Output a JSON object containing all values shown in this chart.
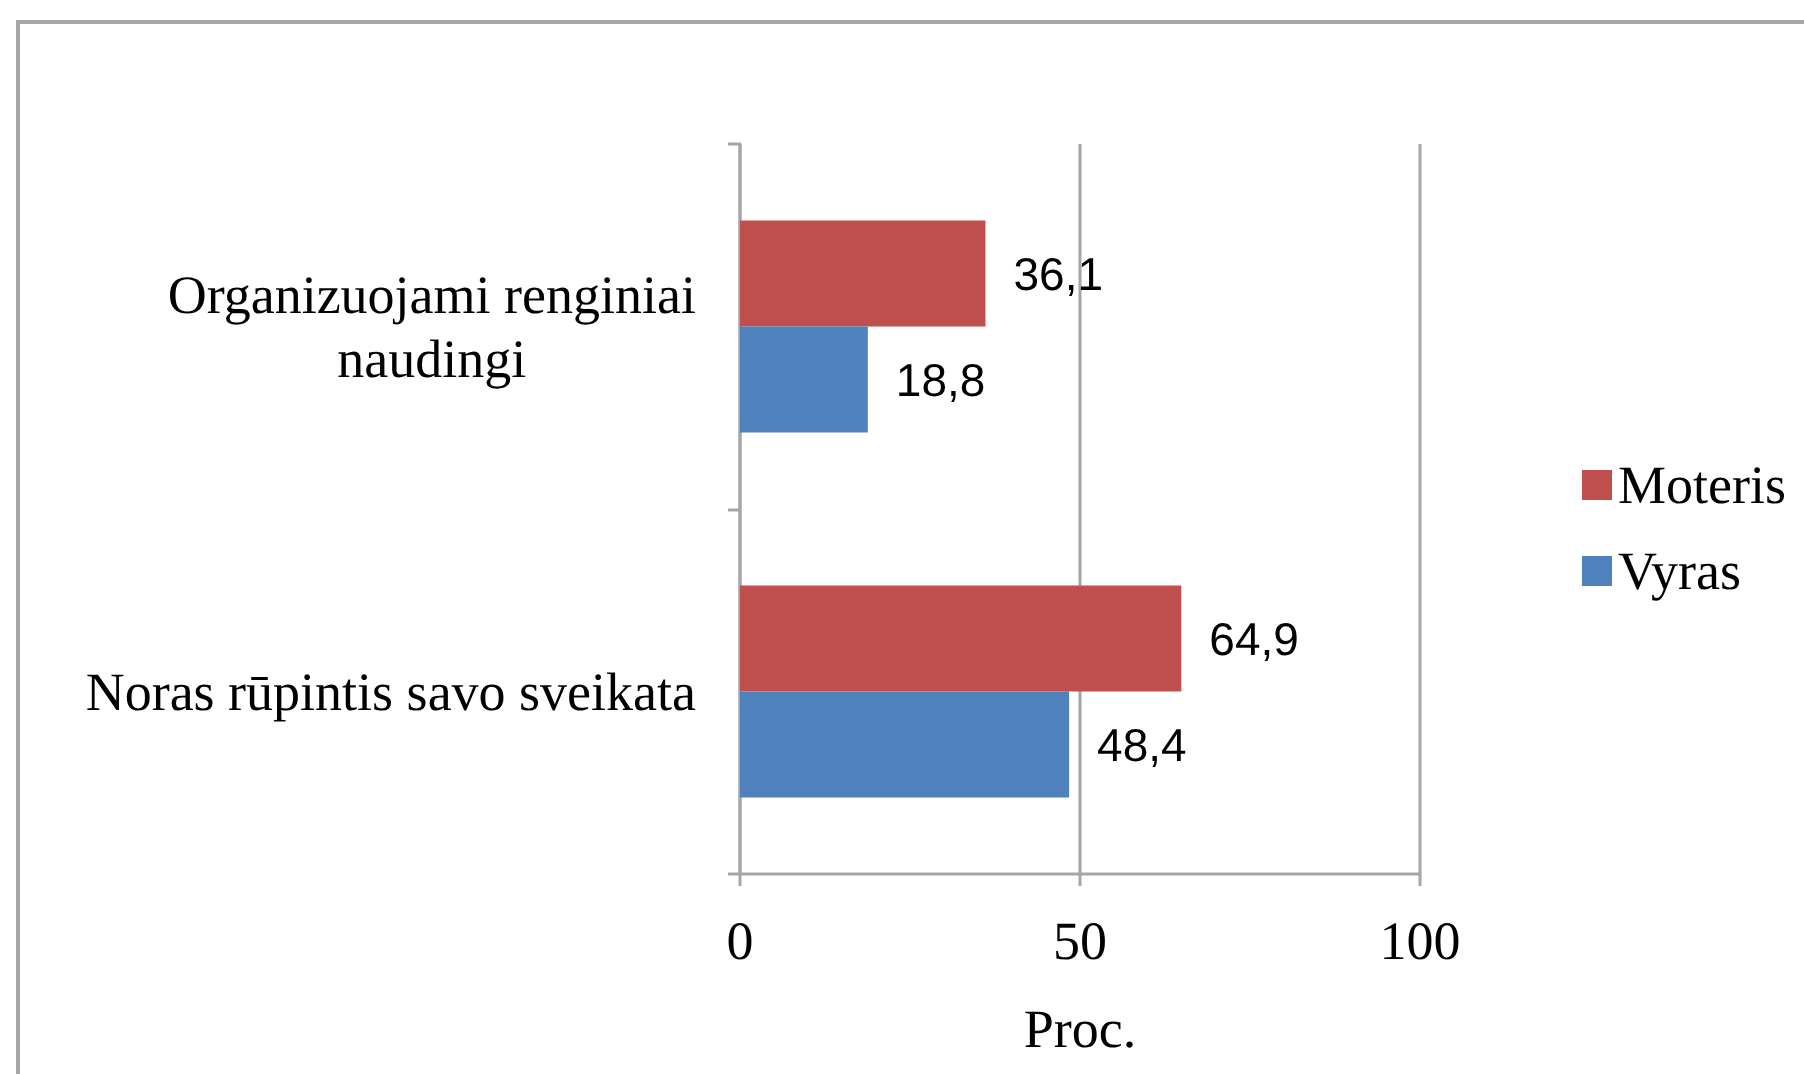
{
  "chart_data": {
    "type": "bar",
    "orientation": "horizontal",
    "xlabel": "Proc.",
    "categories": [
      "Organizuojami renginiai naudingi",
      "Noras rūpintis savo sveikata"
    ],
    "series": [
      {
        "name": "Moteris",
        "color": "#c0504d",
        "values": [
          36.1,
          64.9
        ],
        "value_labels": [
          "36,1",
          "64,9"
        ]
      },
      {
        "name": "Vyras",
        "color": "#4f81bd",
        "values": [
          18.8,
          48.4
        ],
        "value_labels": [
          "18,8",
          "48,4"
        ]
      }
    ],
    "xlim": [
      0,
      100
    ],
    "xticks": [
      0,
      50,
      100
    ],
    "grid": "x",
    "legend": "right"
  }
}
